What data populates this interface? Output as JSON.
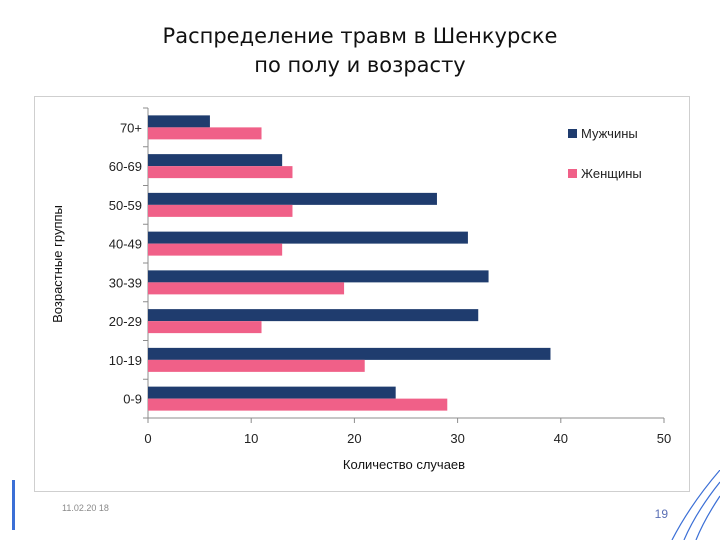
{
  "slide": {
    "title_line1": "Распределение травм в Шенкурске",
    "title_line2": "по полу и возрасту",
    "date": "11.02.20 18",
    "page_number": "19"
  },
  "chart_data": {
    "type": "bar",
    "orientation": "horizontal",
    "categories": [
      "70+",
      "60-69",
      "50-59",
      "40-49",
      "30-39",
      "20-29",
      "10-19",
      "0-9"
    ],
    "series": [
      {
        "name": "Мужчины",
        "color": "#1f3c6e",
        "values": [
          6,
          13,
          28,
          31,
          33,
          32,
          39,
          24
        ]
      },
      {
        "name": "Женщины",
        "color": "#f06088",
        "values": [
          11,
          14,
          14,
          13,
          19,
          11,
          21,
          29
        ]
      }
    ],
    "xlabel": "Количество случаев",
    "ylabel": "Возрастные группы",
    "xlim": [
      0,
      50
    ],
    "xticks": [
      0,
      10,
      20,
      30,
      40,
      50
    ],
    "grid": false,
    "legend_position": "right"
  }
}
